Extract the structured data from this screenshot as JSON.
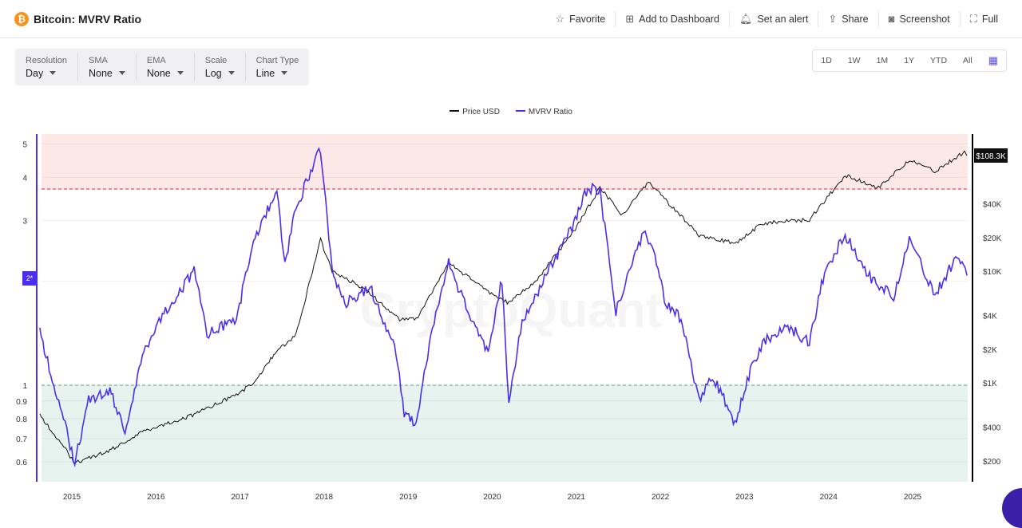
{
  "header": {
    "title": "Bitcoin: MVRV Ratio",
    "coin_icon": "bitcoin-icon",
    "actions": [
      {
        "label": "Favorite",
        "icon": "star-icon"
      },
      {
        "label": "Add to Dashboard",
        "icon": "dashboard-add-icon"
      },
      {
        "label": "Set an alert",
        "icon": "bell-icon"
      },
      {
        "label": "Share",
        "icon": "share-icon"
      },
      {
        "label": "Screenshot",
        "icon": "camera-icon"
      },
      {
        "label": "Full",
        "icon": "fullscreen-icon"
      }
    ]
  },
  "filters": [
    {
      "label": "Resolution",
      "value": "Day"
    },
    {
      "label": "SMA",
      "value": "None"
    },
    {
      "label": "EMA",
      "value": "None"
    },
    {
      "label": "Scale",
      "value": "Log"
    },
    {
      "label": "Chart Type",
      "value": "Line"
    }
  ],
  "ranges": [
    "1D",
    "1W",
    "1M",
    "1Y",
    "YTD",
    "All"
  ],
  "watermark": "CryptoQuant",
  "chart_data": {
    "type": "line",
    "legend": [
      "Price USD",
      "MVRV Ratio"
    ],
    "legend_position": "top",
    "colors": {
      "price": "#111111",
      "mvrv": "#4a2ff0",
      "high_zone": "#fde8e8",
      "low_zone": "#e6f3ee",
      "high_line": "#e02424",
      "low_line": "#5aa070"
    },
    "x_ticks": [
      "2015",
      "2016",
      "2017",
      "2018",
      "2019",
      "2020",
      "2021",
      "2022",
      "2023",
      "2024",
      "2025"
    ],
    "left_axis": {
      "scale": "log",
      "ticks": [
        "5",
        "4",
        "3",
        "1",
        "0.9",
        "0.8",
        "0.7",
        "0.6"
      ],
      "marker": "2*",
      "range": [
        0.55,
        5.3
      ]
    },
    "right_axis": {
      "scale": "log",
      "ticks": [
        "$40K",
        "$20K",
        "$10K",
        "$4K",
        "$2K",
        "$1K",
        "$400",
        "$200"
      ],
      "current": "$108.3K",
      "range": [
        150,
        150000
      ]
    },
    "thresholds": {
      "high": 3.7,
      "low": 1
    },
    "series": [
      {
        "name": "MVRV Ratio",
        "points": [
          [
            "2014-08-15",
            1.44
          ],
          [
            "2014-10-15",
            1.0
          ],
          [
            "2015-01-14",
            0.6
          ],
          [
            "2015-03-15",
            0.91
          ],
          [
            "2015-06-15",
            0.96
          ],
          [
            "2015-08-20",
            0.74
          ],
          [
            "2015-11-10",
            1.26
          ],
          [
            "2016-01-15",
            1.55
          ],
          [
            "2016-06-15",
            2.14
          ],
          [
            "2016-08-10",
            1.4
          ],
          [
            "2016-12-15",
            1.55
          ],
          [
            "2017-03-01",
            2.64
          ],
          [
            "2017-06-10",
            3.64
          ],
          [
            "2017-07-15",
            2.26
          ],
          [
            "2017-09-01",
            3.27
          ],
          [
            "2017-12-17",
            4.83
          ],
          [
            "2018-02-05",
            2.14
          ],
          [
            "2018-04-01",
            1.73
          ],
          [
            "2018-07-20",
            1.92
          ],
          [
            "2018-11-10",
            1.26
          ],
          [
            "2018-12-15",
            0.82
          ],
          [
            "2019-02-05",
            0.78
          ],
          [
            "2019-04-10",
            1.4
          ],
          [
            "2019-06-26",
            2.26
          ],
          [
            "2019-09-30",
            1.55
          ],
          [
            "2019-12-15",
            1.26
          ],
          [
            "2020-02-12",
            2.03
          ],
          [
            "2020-03-13",
            0.87
          ],
          [
            "2020-05-10",
            1.55
          ],
          [
            "2020-08-15",
            2.03
          ],
          [
            "2020-12-20",
            2.94
          ],
          [
            "2021-02-20",
            3.74
          ],
          [
            "2021-04-14",
            3.64
          ],
          [
            "2021-06-22",
            1.64
          ],
          [
            "2021-10-20",
            2.79
          ],
          [
            "2021-11-25",
            2.51
          ],
          [
            "2022-01-25",
            1.73
          ],
          [
            "2022-04-01",
            1.55
          ],
          [
            "2022-06-18",
            0.91
          ],
          [
            "2022-08-15",
            1.07
          ],
          [
            "2022-11-21",
            0.78
          ],
          [
            "2023-01-20",
            1.07
          ],
          [
            "2023-03-20",
            1.33
          ],
          [
            "2023-07-15",
            1.47
          ],
          [
            "2023-10-10",
            1.33
          ],
          [
            "2023-12-15",
            2.14
          ],
          [
            "2024-03-13",
            2.72
          ],
          [
            "2024-07-05",
            2.03
          ],
          [
            "2024-10-10",
            1.82
          ],
          [
            "2024-12-17",
            2.65
          ],
          [
            "2025-04-08",
            1.82
          ],
          [
            "2025-07-14",
            2.38
          ],
          [
            "2025-08-25",
            2.08
          ]
        ]
      },
      {
        "name": "Price USD",
        "points": [
          [
            "2014-08-15",
            518
          ],
          [
            "2015-01-14",
            193
          ],
          [
            "2015-06-15",
            247
          ],
          [
            "2015-11-10",
            373
          ],
          [
            "2016-06-15",
            518
          ],
          [
            "2016-12-15",
            781
          ],
          [
            "2017-03-01",
            1000
          ],
          [
            "2017-06-10",
            1930
          ],
          [
            "2017-09-01",
            2680
          ],
          [
            "2017-12-17",
            19000
          ],
          [
            "2018-02-05",
            10000
          ],
          [
            "2018-06-15",
            7200
          ],
          [
            "2018-11-25",
            3730
          ],
          [
            "2019-02-05",
            3730
          ],
          [
            "2019-06-26",
            11800
          ],
          [
            "2019-12-15",
            6600
          ],
          [
            "2020-03-13",
            5180
          ],
          [
            "2020-07-15",
            8500
          ],
          [
            "2020-12-20",
            22700
          ],
          [
            "2021-04-14",
            56000
          ],
          [
            "2021-07-20",
            31700
          ],
          [
            "2021-11-10",
            63000
          ],
          [
            "2022-06-18",
            21000
          ],
          [
            "2022-11-21",
            17800
          ],
          [
            "2023-03-20",
            26800
          ],
          [
            "2023-10-10",
            29000
          ],
          [
            "2024-03-13",
            72000
          ],
          [
            "2024-08-05",
            56000
          ],
          [
            "2024-12-17",
            100000
          ],
          [
            "2025-04-08",
            78000
          ],
          [
            "2025-08-14",
            117000
          ],
          [
            "2025-08-25",
            108300
          ]
        ]
      }
    ]
  }
}
